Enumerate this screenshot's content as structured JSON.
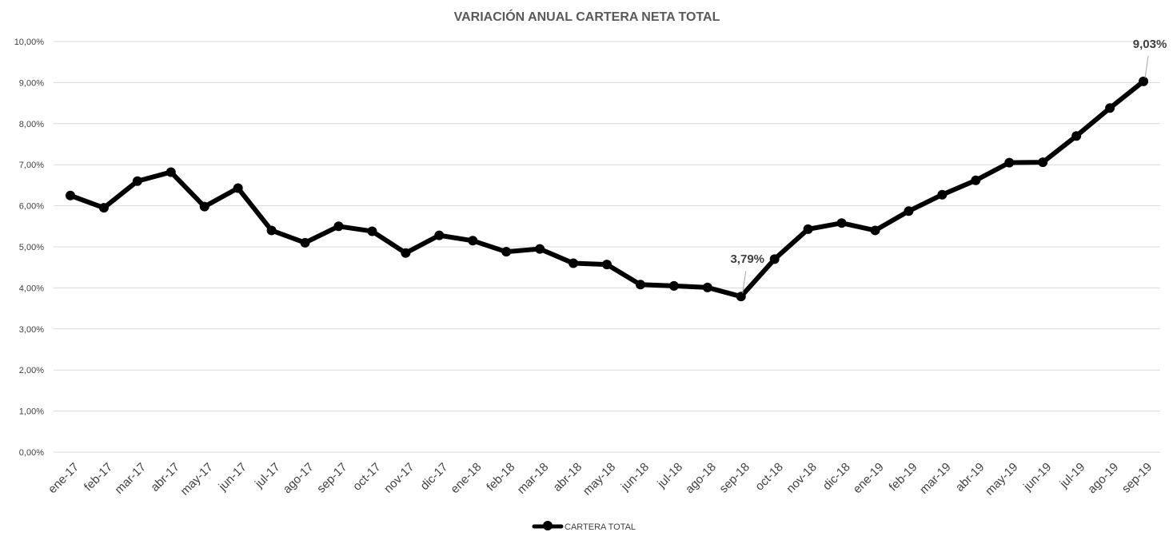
{
  "chart_data": {
    "type": "line",
    "title": "VARIACIÓN ANUAL CARTERA NETA TOTAL",
    "xlabel": "",
    "ylabel": "",
    "ylim": [
      0,
      10
    ],
    "y_ticks": [
      "0,00%",
      "1,00%",
      "2,00%",
      "3,00%",
      "4,00%",
      "5,00%",
      "6,00%",
      "7,00%",
      "8,00%",
      "9,00%",
      "10,00%"
    ],
    "categories": [
      "ene-17",
      "feb-17",
      "mar-17",
      "abr-17",
      "may-17",
      "jun-17",
      "jul-17",
      "ago-17",
      "sep-17",
      "oct-17",
      "nov-17",
      "dic-17",
      "ene-18",
      "feb-18",
      "mar-18",
      "abr-18",
      "may-18",
      "jun-18",
      "jul-18",
      "ago-18",
      "sep-18",
      "oct-18",
      "nov-18",
      "dic-18",
      "ene-19",
      "feb-19",
      "mar-19",
      "abr-19",
      "may-19",
      "jun-19",
      "jul-19",
      "ago-19",
      "sep-19"
    ],
    "series": [
      {
        "name": "CARTERA TOTAL",
        "color": "#000000",
        "values": [
          6.25,
          5.95,
          6.6,
          6.82,
          5.98,
          6.43,
          5.4,
          5.1,
          5.5,
          5.38,
          4.85,
          5.28,
          5.15,
          4.88,
          4.95,
          4.6,
          4.57,
          4.08,
          4.05,
          4.01,
          3.79,
          4.7,
          5.43,
          5.58,
          5.4,
          5.87,
          6.27,
          6.62,
          7.05,
          7.06,
          7.7,
          8.38,
          9.03
        ]
      }
    ],
    "annotations": [
      {
        "label": "3,79%",
        "index": 20
      },
      {
        "label": "9,03%",
        "index": 32
      }
    ],
    "grid": true,
    "legend": "bottom"
  }
}
